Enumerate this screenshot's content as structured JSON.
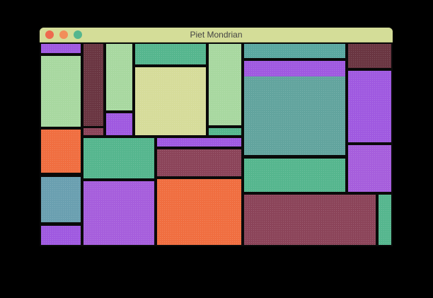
{
  "window": {
    "title": "Piet Mondrian"
  },
  "palette": {
    "green": "#55b68e",
    "light_green": "#a8d8a0",
    "pale_yellow": "#d6dc9a",
    "purple": "#9f59e0",
    "light_purple": "#a65edc",
    "orange": "#f06e40",
    "maroon": "#8b4459",
    "dark_maroon": "#6a3541",
    "teal": "#62a49e",
    "steel_teal": "#6a9fb0",
    "grid_line": "#0a0a0a",
    "titlebar": "#d4dd98"
  },
  "canvas": {
    "cell_colors": [
      "purple",
      "light_green",
      "orange",
      "steel_teal",
      "purple",
      "dark_maroon",
      "maroon",
      "light_green",
      "purple",
      "green",
      "pale_yellow",
      "light_green",
      "green",
      "green",
      "light_purple",
      "purple",
      "maroon",
      "orange",
      "teal",
      "purple",
      "green",
      "dark_maroon",
      "purple",
      "light_purple",
      "maroon",
      "green"
    ]
  }
}
